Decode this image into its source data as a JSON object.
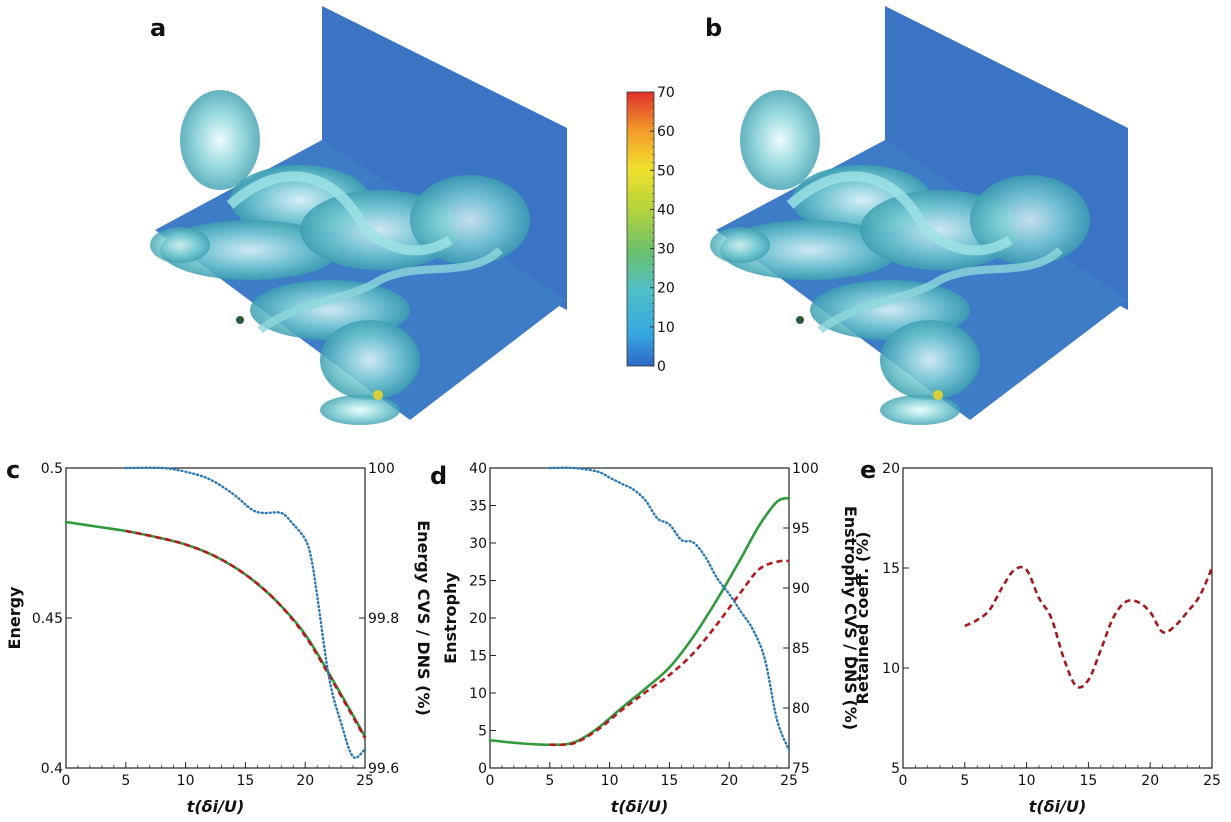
{
  "panels": {
    "a": "a",
    "b": "b",
    "c": "c",
    "d": "d",
    "e": "e"
  },
  "colors": {
    "dns": "#2e9a3c",
    "cvs": "#b8191f",
    "ratio": "#2a79b5",
    "retained": "#a31a1f"
  },
  "colorbar": {
    "ticks": [
      "70",
      "60",
      "50",
      "40",
      "30",
      "20",
      "10",
      "0"
    ],
    "min": 0,
    "max": 70
  },
  "chart_data": [
    {
      "panel": "c",
      "type": "line",
      "xlabel": "t(δi/U)",
      "ylabel": "Energy",
      "ylabel_right": "Energy CVS / DNS (%)",
      "xlim": [
        0,
        25
      ],
      "ylim": [
        0.4,
        0.5
      ],
      "ylim_right": [
        99.6,
        100
      ],
      "xticks": [
        "0",
        "5",
        "10",
        "15",
        "20",
        "25"
      ],
      "yticks": [
        "0.4",
        "0.45",
        "0.5"
      ],
      "yticks_right": [
        "99.6",
        "99.8",
        "100"
      ],
      "series": [
        {
          "key": "dns",
          "axis": "left",
          "style": "solid",
          "x": [
            0,
            2.5,
            5,
            7.5,
            10,
            12.5,
            15,
            17.5,
            20,
            22.5,
            25
          ],
          "y": [
            0.482,
            0.4805,
            0.479,
            0.477,
            0.4745,
            0.4705,
            0.4645,
            0.456,
            0.4445,
            0.428,
            0.4105
          ]
        },
        {
          "key": "cvs",
          "axis": "left",
          "style": "dashed",
          "x": [
            5,
            7.5,
            10,
            12.5,
            15,
            17.5,
            20,
            22.5,
            25
          ],
          "y": [
            0.479,
            0.477,
            0.4745,
            0.4705,
            0.4645,
            0.456,
            0.444,
            0.4275,
            0.41
          ]
        },
        {
          "key": "ratio",
          "axis": "right",
          "style": "dotted",
          "x": [
            5,
            8,
            10,
            12,
            14,
            15.5,
            16.5,
            18,
            19,
            20,
            20.5,
            21,
            22,
            23,
            24,
            25
          ],
          "y": [
            100,
            100,
            99.995,
            99.985,
            99.965,
            99.945,
            99.94,
            99.94,
            99.925,
            99.905,
            99.88,
            99.83,
            99.72,
            99.66,
            99.615,
            99.625
          ]
        }
      ]
    },
    {
      "panel": "d",
      "type": "line",
      "xlabel": "t(δi/U)",
      "ylabel": "Enstrophy",
      "ylabel_right": "Enstrophy CVS / DNS (%)",
      "xlim": [
        0,
        25
      ],
      "ylim": [
        0,
        40
      ],
      "ylim_right": [
        75,
        100
      ],
      "xticks": [
        "0",
        "5",
        "10",
        "15",
        "20",
        "25"
      ],
      "yticks": [
        "0",
        "5",
        "10",
        "15",
        "20",
        "25",
        "30",
        "35",
        "40"
      ],
      "yticks_right": [
        "75",
        "80",
        "85",
        "90",
        "95",
        "100"
      ],
      "series": [
        {
          "key": "dns",
          "axis": "left",
          "style": "solid",
          "x": [
            0,
            2.5,
            5,
            7,
            9,
            11,
            13,
            15,
            17,
            19,
            21,
            22.5,
            24,
            25
          ],
          "y": [
            3.7,
            3.3,
            3.1,
            3.4,
            5.3,
            8.0,
            10.6,
            13.4,
            17.5,
            22.5,
            28.0,
            32.3,
            35.5,
            36.0
          ]
        },
        {
          "key": "cvs",
          "axis": "left",
          "style": "dashed",
          "x": [
            5,
            7,
            9,
            11,
            13,
            15,
            17,
            19,
            21,
            22.5,
            24,
            25
          ],
          "y": [
            3.1,
            3.3,
            5.1,
            7.7,
            10.1,
            12.4,
            15.3,
            19.2,
            23.5,
            26.5,
            27.5,
            27.6
          ]
        },
        {
          "key": "ratio",
          "axis": "right",
          "style": "dotted",
          "x": [
            5,
            7,
            9,
            10,
            11,
            12,
            13,
            14,
            15,
            16,
            17,
            18,
            19,
            20,
            21,
            22,
            23,
            24,
            25
          ],
          "y": [
            100,
            100,
            99.7,
            99.2,
            98.7,
            98.2,
            97.3,
            95.8,
            95.3,
            94.0,
            93.8,
            92.6,
            90.8,
            89.5,
            88.0,
            86.5,
            84.0,
            79.0,
            76.5
          ]
        }
      ]
    },
    {
      "panel": "e",
      "type": "line",
      "xlabel": "t(δi/U)",
      "ylabel": "Retained coeff. (%)",
      "xlim": [
        0,
        25
      ],
      "ylim": [
        5,
        20
      ],
      "xticks": [
        "0",
        "5",
        "10",
        "15",
        "20",
        "25"
      ],
      "yticks": [
        "5",
        "10",
        "15",
        "20"
      ],
      "series": [
        {
          "key": "retained",
          "axis": "left",
          "style": "dashed",
          "x": [
            5,
            6,
            7,
            8,
            9,
            10,
            11,
            12,
            13,
            14,
            15,
            16,
            17,
            18,
            19,
            20,
            21,
            22,
            23,
            24,
            25
          ],
          "y": [
            12.1,
            12.4,
            12.9,
            14.0,
            14.9,
            14.9,
            13.5,
            12.5,
            10.5,
            9.1,
            9.4,
            10.9,
            12.5,
            13.3,
            13.3,
            12.8,
            11.8,
            12.1,
            12.8,
            13.6,
            15.0
          ]
        }
      ]
    }
  ]
}
